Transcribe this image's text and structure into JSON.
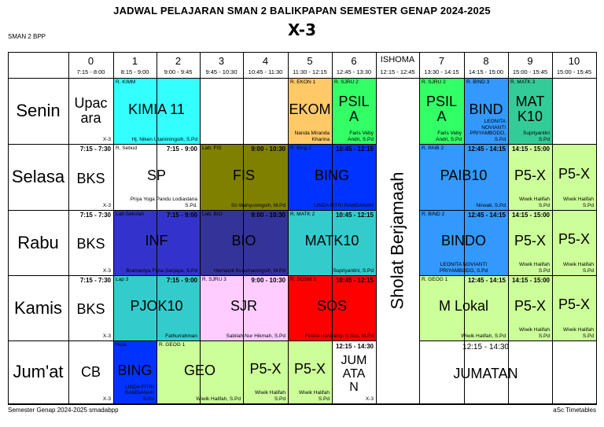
{
  "title": "JADWAL PELAJARAN SMAN 2 BALIKPAPAN SEMESTER GENAP 2024-2025",
  "class_name": "X-3",
  "school_short": "SMAN 2 BPP",
  "footer_left": "Semester Genap 2024-2025 smadabpp",
  "footer_right": "aSc Timetables",
  "ishoma": {
    "label": "ISHOMA",
    "time": "12:15 - 12:45",
    "text": "Sholat Berjamaah"
  },
  "periods": [
    {
      "num": "0",
      "time": "7:15 - 8:00"
    },
    {
      "num": "1",
      "time": "8:15 - 9:00"
    },
    {
      "num": "2",
      "time": "9:00 - 9:45"
    },
    {
      "num": "3",
      "time": "9:45 - 10:30"
    },
    {
      "num": "4",
      "time": "10:45 - 11:30"
    },
    {
      "num": "5",
      "time": "11:30 - 12:15"
    },
    {
      "num": "6",
      "time": "12:45 - 13:30"
    },
    {
      "num": "7",
      "time": "13:30 - 14:15"
    },
    {
      "num": "8",
      "time": "14:15 - 15:00"
    },
    {
      "num": "9",
      "time": "15:00 - 15:45"
    },
    {
      "num": "10",
      "time": "15:00 - 15:45"
    }
  ],
  "days": [
    "Senin",
    "Selasa",
    "Rabu",
    "Kamis",
    "Jum'at"
  ],
  "cells": [
    {
      "subject": "Upac\nara",
      "room": "",
      "time": "",
      "teacher": "",
      "class_tag": "X-3",
      "color": "#ffffff"
    },
    {
      "subject": "KIMIA 11",
      "room": "R. KIMM",
      "time": "",
      "teacher": "Hj. Niken Utaminingsih, S.Pd",
      "class_tag": "",
      "color": "#33ffff"
    },
    {
      "subject": "EKOM",
      "room": "R. EKON 1",
      "time": "",
      "teacher": "Nanda Miranda Kharina",
      "class_tag": "",
      "color": "#ffc966"
    },
    {
      "subject": "PSIL\nA",
      "room": "R. SJRU 2",
      "time": "",
      "teacher": "Faris Veby\nAndri, S.Pd",
      "class_tag": "",
      "color": "#33ff66"
    },
    {
      "subject": "PSIL\nA",
      "room": "R. SJRU 2",
      "time": "",
      "teacher": "Faris Veby\nAndri, S.Pd",
      "class_tag": "",
      "color": "#33ff66"
    },
    {
      "subject": "BIND",
      "room": "R. BIND 3",
      "time": "",
      "teacher": "LEONITA\nNOVIANTI\nPRIYAMBODO, S.Pd",
      "class_tag": "",
      "color": "#3399ff"
    },
    {
      "subject": "MAT\nK10",
      "room": "R. MATK 3",
      "time": "",
      "teacher": "Supriyantini\nS.Pd",
      "class_tag": "",
      "color": "#33cc99"
    },
    {
      "subject": "BKS",
      "room": "",
      "time": "7:15 - 7:30",
      "teacher": "",
      "class_tag": "X-3",
      "color": "#ffffff"
    },
    {
      "subject": "SP",
      "room": "R. Sebud",
      "time": "7:15 - 9:00",
      "teacher": "Priya Yoga Pandu Lodiastana\nS.Pd.",
      "class_tag": "",
      "color": "#ffffff"
    },
    {
      "subject": "FIS",
      "room": "Lab. FIS",
      "time": "9:00 - 10:30",
      "teacher": "Sri Wahyuningsih, M.Pd",
      "class_tag": "",
      "color": "#808000"
    },
    {
      "subject": "BING",
      "room": "R. Bing 2",
      "time": "10:45 - 12:15",
      "teacher": "LINDA FITRI RAMDANAH",
      "class_tag": "",
      "color": "#0033ff"
    },
    {
      "subject": "PAIB10",
      "room": "R. PAIB 2",
      "time": "12:45 - 14:15",
      "teacher": "Nirwati, S.Pd",
      "class_tag": "",
      "color": "#3399ff"
    },
    {
      "subject": "P5-X",
      "room": "",
      "time": "14:15 - 15:00",
      "teacher": "Wiwik Halifah\nS.Pd",
      "class_tag": "",
      "color": "#ccff99"
    },
    {
      "subject": "P5-X",
      "room": "",
      "time": "",
      "teacher": "Wiwik Halifah\nS.Pd",
      "class_tag": "",
      "color": "#ccff99"
    },
    {
      "subject": "BKS",
      "room": "",
      "time": "7:15 - 7:30",
      "teacher": "",
      "class_tag": "X-3",
      "color": "#ffffff"
    },
    {
      "subject": "INF",
      "room": "Lab Sekolah",
      "time": "7:15 - 9:00",
      "teacher": "Bramantya Fitria Sanjaya, S.Pd",
      "class_tag": "",
      "color": "#3333cc"
    },
    {
      "subject": "BIO",
      "room": "Lab. BIO",
      "time": "9:00 - 10:30",
      "teacher": "Hernanik Kusumaningsih, M.Pd",
      "class_tag": "",
      "color": "#333399"
    },
    {
      "subject": "MATK10",
      "room": "R. MATK 2",
      "time": "10:45 - 12:15",
      "teacher": "Supriyantini, S.Pd",
      "class_tag": "",
      "color": "#33cccc"
    },
    {
      "subject": "BINDO",
      "room": "R. BIND 2",
      "time": "12:45 - 14:15",
      "teacher": "LEONITA NOVIANTI\nPRIYAMBODO, S.Pd",
      "class_tag": "",
      "color": "#3399ff"
    },
    {
      "subject": "P5-X",
      "room": "",
      "time": "14:15 - 15:00",
      "teacher": "Wiwik Halifah\nS.Pd",
      "class_tag": "",
      "color": "#ccff99"
    },
    {
      "subject": "P5-X",
      "room": "",
      "time": "",
      "teacher": "Wiwik Halifah\nS.Pd",
      "class_tag": "",
      "color": "#ccff99"
    },
    {
      "subject": "BKS",
      "room": "",
      "time": "7:15 - 7:30",
      "teacher": "",
      "class_tag": "X-3",
      "color": "#ffffff"
    },
    {
      "subject": "PJOK10",
      "room": "Lap 3",
      "time": "7:15 - 9:00",
      "teacher": "Fathurrahman",
      "class_tag": "",
      "color": "#33cccc"
    },
    {
      "subject": "SJR",
      "room": "R. SJRU 3",
      "time": "9:00 - 10:30",
      "teacher": "Sabilah Nur Hikmah, S.Pd",
      "class_tag": "",
      "color": "#ffccff"
    },
    {
      "subject": "SOS",
      "room": "R. SOSM 1",
      "time": "10:45 - 12:15",
      "teacher": "Febria Hardianty, S.Sos, M.Pd",
      "class_tag": "",
      "color": "#ff0000"
    },
    {
      "subject": "M Lokal",
      "room": "R. GEOG 1",
      "time": "12:45 - 14:15",
      "teacher": "Wiwik Halifah, S.Pd",
      "class_tag": "",
      "color": "#ccff99"
    },
    {
      "subject": "P5-X",
      "room": "",
      "time": "14:15 - 15:00",
      "teacher": "Wiwik Halifah\nS.Pd",
      "class_tag": "",
      "color": "#ccff99"
    },
    {
      "subject": "P5-X",
      "room": "",
      "time": "",
      "teacher": "Wiwik Halifah\nS.Pd",
      "class_tag": "",
      "color": "#ccff99"
    },
    {
      "subject": "CB",
      "room": "",
      "time": "",
      "teacher": "",
      "class_tag": "X-3",
      "color": "#ffffff"
    },
    {
      "subject": "BING",
      "room": "Hula",
      "time": "",
      "teacher": "LINDA FITRI\nRAMDANAH\nS.Pd",
      "class_tag": "",
      "color": "#0033ff"
    },
    {
      "subject": "GEO",
      "room": "R. GEOG 1",
      "time": "",
      "teacher": "Wiwik Halifah, S.Pd",
      "class_tag": "",
      "color": "#ccff99"
    },
    {
      "subject": "P5-X",
      "room": "",
      "time": "",
      "teacher": "Wiwik Halifah\nS.Pd",
      "class_tag": "",
      "color": "#ccff99"
    },
    {
      "subject": "P5-X",
      "room": "",
      "time": "",
      "teacher": "Wiwik Halifah\nS.Pd",
      "class_tag": "",
      "color": "#ccff99"
    },
    {
      "subject": "JUM\nATA\nN",
      "room": "",
      "time": "12:15 - 14:30",
      "teacher": "",
      "class_tag": "X-3",
      "color": "#ffffff"
    },
    {
      "subject": "JUMATAN",
      "room": "",
      "time": "12:15 - 14:30",
      "teacher": "",
      "class_tag": "",
      "color": "#ffffff"
    }
  ]
}
